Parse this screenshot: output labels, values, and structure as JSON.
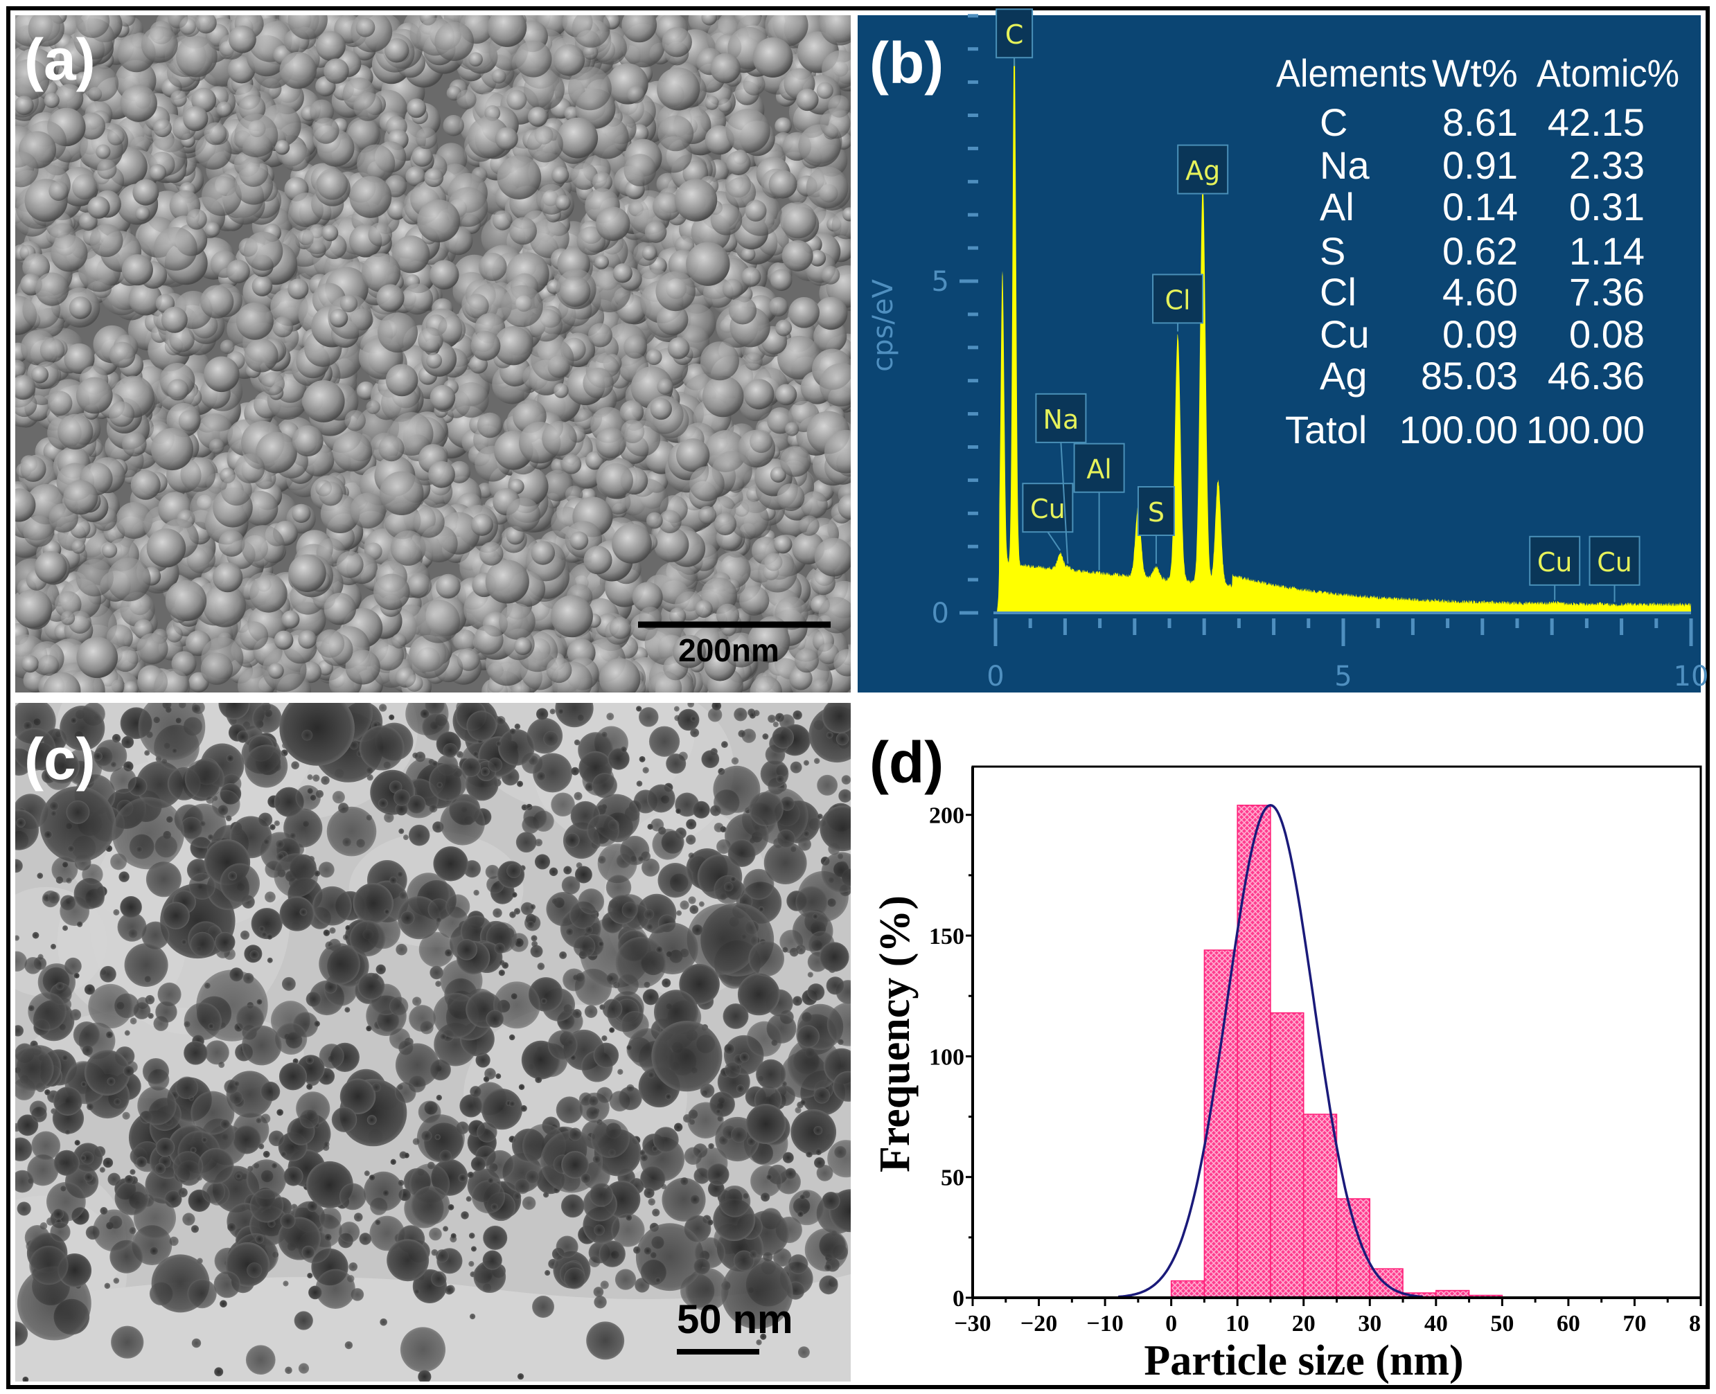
{
  "panels": {
    "a": {
      "label": "(a)",
      "scale_bar": "200nm"
    },
    "b": {
      "label": "(b)"
    },
    "c": {
      "label": "(c)",
      "scale_bar": "50 nm"
    },
    "d": {
      "label": "(d)"
    }
  },
  "chart_data": [
    {
      "panel": "b",
      "type": "line",
      "ylabel": "cps/eV",
      "xlabel": "",
      "xlim": [
        0,
        10
      ],
      "ylim": [
        0,
        9
      ],
      "x_ticks": [
        "0",
        "5",
        "10"
      ],
      "y_ticks": [
        "0",
        "5"
      ],
      "colors": {
        "background": "#0b4573",
        "spectrum": "#ffff00",
        "label_text": "#e6f25a",
        "axis": "#4f8fbf"
      },
      "peaks": [
        {
          "label": "",
          "energy": 0.1,
          "height": 4.4
        },
        {
          "label": "C",
          "energy": 0.27,
          "height": 8.2
        },
        {
          "label": "Cu",
          "energy": 0.93,
          "height": 0.9
        },
        {
          "label": "Na",
          "energy": 1.04,
          "height": 0.7
        },
        {
          "label": "Al",
          "energy": 1.49,
          "height": 0.6
        },
        {
          "label": "",
          "energy": 2.05,
          "height": 1.6
        },
        {
          "label": "S",
          "energy": 2.31,
          "height": 0.7
        },
        {
          "label": "Cl",
          "energy": 2.62,
          "height": 4.2
        },
        {
          "label": "Ag",
          "energy": 2.98,
          "height": 6.5
        },
        {
          "label": "",
          "energy": 3.2,
          "height": 2.0
        },
        {
          "label": "Cu",
          "energy": 8.04,
          "height": 0.15
        },
        {
          "label": "Cu",
          "energy": 8.9,
          "height": 0.12
        }
      ],
      "table": {
        "headers": [
          "Alements",
          "Wt%",
          "Atomic%"
        ],
        "rows": [
          [
            "C",
            "8.61",
            "42.15"
          ],
          [
            "Na",
            "0.91",
            "2.33"
          ],
          [
            "Al",
            "0.14",
            "0.31"
          ],
          [
            "S",
            "0.62",
            "1.14"
          ],
          [
            "Cl",
            "4.60",
            "7.36"
          ],
          [
            "Cu",
            "0.09",
            "0.08"
          ],
          [
            "Ag",
            "85.03",
            "46.36"
          ],
          [
            "Tatol",
            "100.00",
            "100.00"
          ]
        ]
      }
    },
    {
      "panel": "d",
      "type": "bar",
      "xlabel": "Particle size (nm)",
      "ylabel": "Frequency (%)",
      "xlim": [
        -30,
        80
      ],
      "ylim": [
        0,
        220
      ],
      "x_ticks": [
        "−30",
        "−20",
        "−10",
        "0",
        "10",
        "20",
        "30",
        "40",
        "50",
        "60",
        "70",
        "8"
      ],
      "y_ticks": [
        "0",
        "50",
        "100",
        "150",
        "200"
      ],
      "bin_width": 5,
      "bins": [
        0,
        5,
        10,
        15,
        20,
        25,
        30,
        35,
        40,
        45
      ],
      "values": [
        7,
        144,
        204,
        118,
        76,
        41,
        12,
        2,
        3,
        1
      ],
      "fit": {
        "type": "gaussian",
        "mean": 15,
        "sigma": 6.5,
        "peak": 204
      },
      "colors": {
        "bars": "#ff3d8f",
        "fit": "#1a1a7a"
      }
    }
  ]
}
